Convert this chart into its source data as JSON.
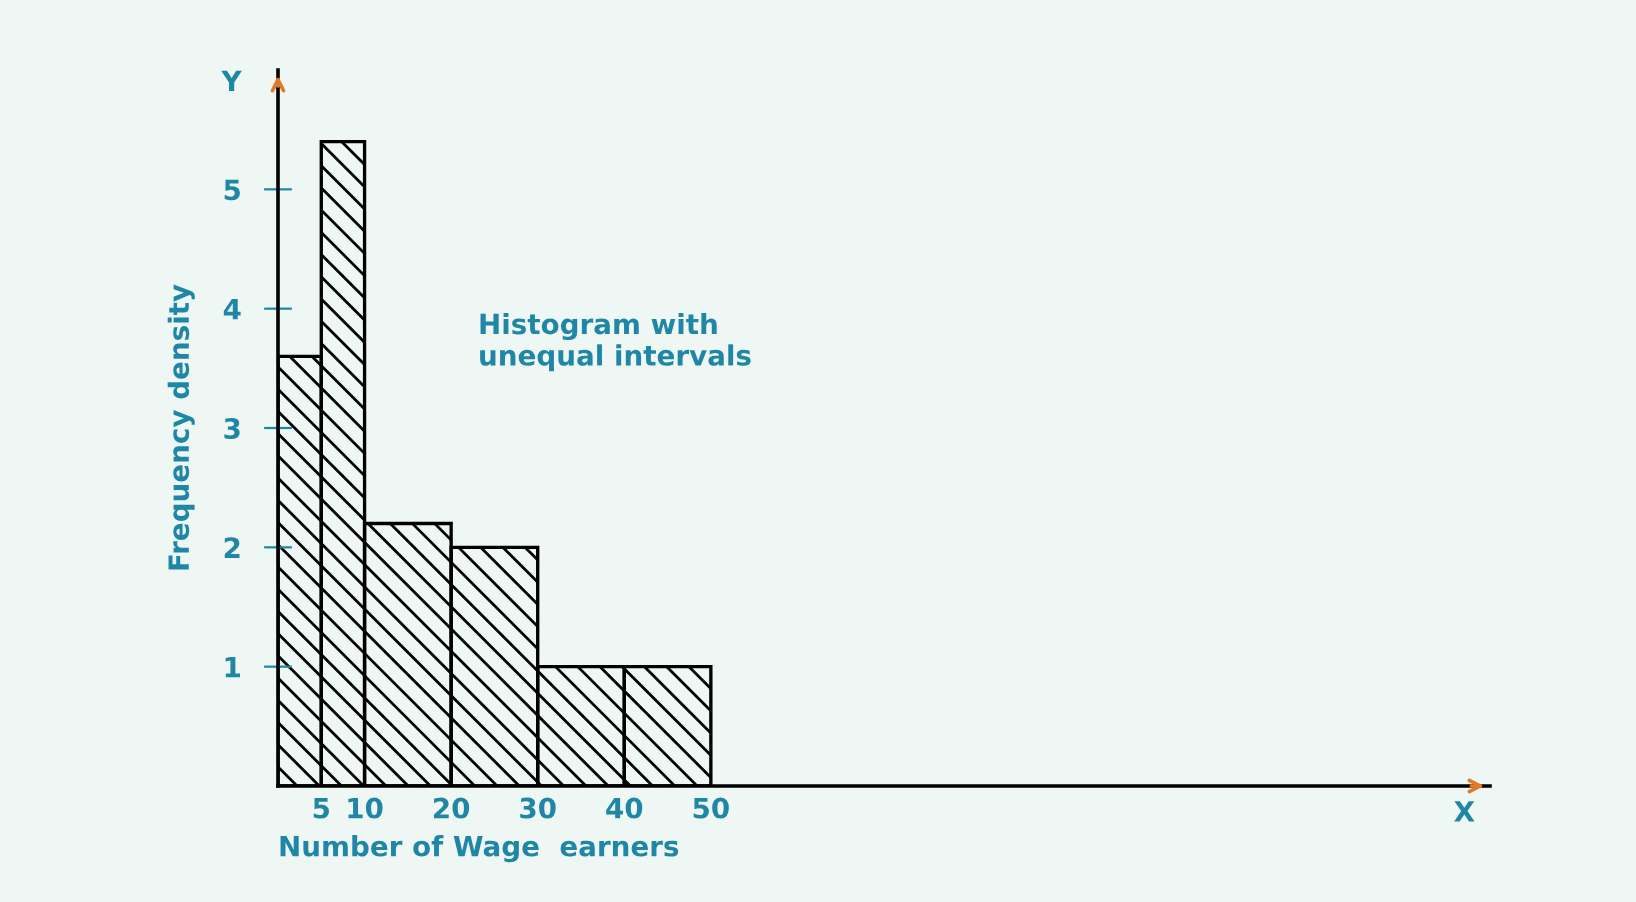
{
  "chart_data": {
    "type": "histogram",
    "xlabel": "Number of Wage  earners",
    "ylabel": "Frequency density",
    "bins": [
      0,
      5,
      10,
      20,
      30,
      40,
      50
    ],
    "values": [
      3.6,
      5.4,
      2.2,
      2.0,
      1.0,
      1.0
    ],
    "color": "#000000",
    "xlim": [
      0,
      140
    ],
    "ylim": [
      0,
      6
    ],
    "xticks": [
      5,
      10,
      20,
      30,
      40,
      50
    ],
    "yticks": [
      1,
      2,
      3,
      4,
      5
    ],
    "annotations": [
      "Histogram with\nunequal intervals",
      "Y",
      "X"
    ]
  }
}
